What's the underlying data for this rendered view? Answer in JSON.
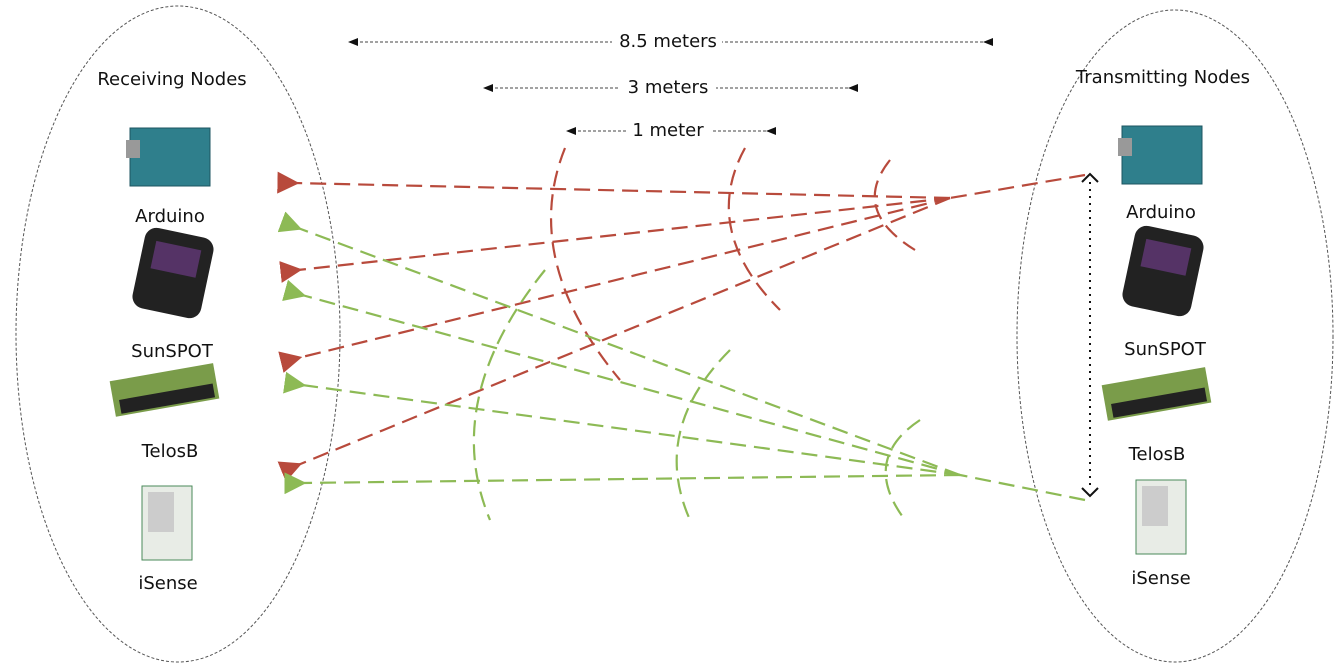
{
  "receiving": {
    "title": "Receiving Nodes",
    "nodes": [
      {
        "label": "Arduino"
      },
      {
        "label": "SunSPOT"
      },
      {
        "label": "TelosB"
      },
      {
        "label": "iSense"
      }
    ]
  },
  "transmitting": {
    "title": "Transmitting Nodes",
    "nodes": [
      {
        "label": "Arduino"
      },
      {
        "label": "SunSPOT"
      },
      {
        "label": "TelosB"
      },
      {
        "label": "iSense"
      }
    ]
  },
  "distances": [
    {
      "label": "8.5 meters"
    },
    {
      "label": "3 meters"
    },
    {
      "label": "1 meter"
    }
  ]
}
